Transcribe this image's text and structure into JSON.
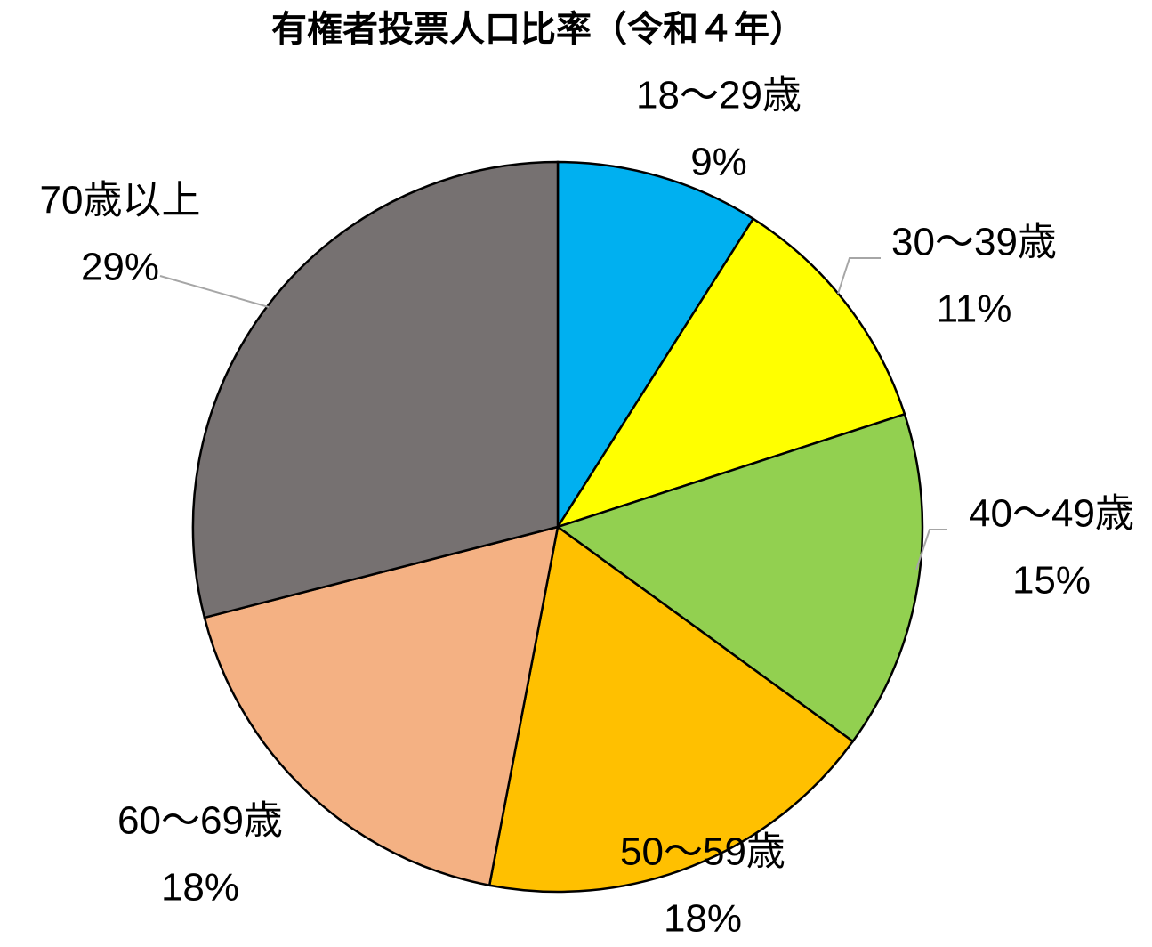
{
  "chart_data": {
    "type": "pie",
    "title": "有権者投票人口比率（令和４年）",
    "categories": [
      "18～29歳",
      "30～39歳",
      "40～49歳",
      "50～59歳",
      "60～69歳",
      "70歳以上"
    ],
    "values": [
      9,
      11,
      15,
      18,
      18,
      29
    ],
    "value_labels": [
      "9%",
      "11%",
      "15%",
      "18%",
      "18%",
      "29%"
    ],
    "colors": [
      "#00b0f0",
      "#ffff00",
      "#92d050",
      "#ffc000",
      "#f4b183",
      "#767171"
    ]
  }
}
